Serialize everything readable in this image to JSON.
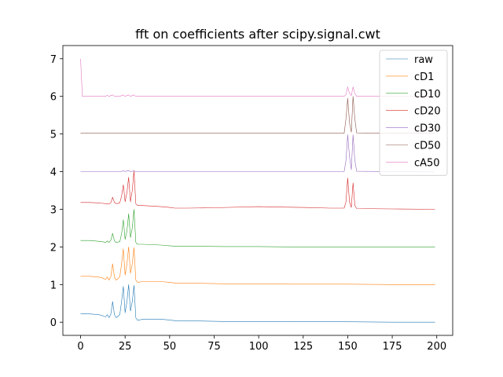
{
  "chart_data": {
    "type": "line",
    "title": "fft on coefficients after scipy.signal.cwt",
    "xlabel": "",
    "ylabel": "",
    "xlim": [
      -9.95,
      208.95
    ],
    "ylim": [
      -0.35,
      7.35
    ],
    "xticks": [
      0,
      25,
      50,
      75,
      100,
      125,
      150,
      175,
      200
    ],
    "yticks": [
      0,
      1,
      2,
      3,
      4,
      5,
      6,
      7
    ],
    "grid": false,
    "legend_position": "top-right",
    "series": [
      {
        "name": "raw",
        "color": "#1f77b4",
        "x": [
          0,
          5,
          10,
          12,
          14,
          15,
          16,
          17,
          18,
          19,
          20,
          22,
          23,
          24,
          25,
          26,
          27,
          28,
          29,
          30,
          31,
          32,
          35,
          45,
          50,
          53,
          60,
          80,
          100,
          120,
          150,
          175,
          199
        ],
        "y": [
          0.22,
          0.22,
          0.2,
          0.18,
          0.14,
          0.2,
          0.12,
          0.22,
          0.55,
          0.2,
          0.12,
          0.2,
          0.55,
          0.95,
          0.25,
          0.55,
          1.0,
          0.3,
          0.55,
          0.98,
          0.12,
          0.05,
          0.08,
          0.08,
          0.06,
          0.04,
          0.04,
          0.02,
          0.02,
          0.01,
          0.01,
          0.0,
          0.0
        ]
      },
      {
        "name": "cD1",
        "color": "#ff7f0e",
        "x": [
          0,
          5,
          10,
          12,
          14,
          15,
          16,
          17,
          18,
          19,
          20,
          22,
          23,
          24,
          25,
          26,
          27,
          28,
          29,
          30,
          31,
          32,
          35,
          45,
          50,
          53,
          60,
          80,
          100,
          120,
          150,
          175,
          199
        ],
        "y": [
          1.22,
          1.22,
          1.2,
          1.18,
          1.14,
          1.2,
          1.12,
          1.22,
          1.55,
          1.2,
          1.12,
          1.2,
          1.55,
          1.95,
          1.25,
          1.55,
          2.0,
          1.3,
          1.55,
          1.98,
          1.12,
          1.06,
          1.08,
          1.08,
          1.06,
          1.04,
          1.04,
          1.02,
          1.02,
          1.01,
          1.01,
          1.0,
          1.0
        ]
      },
      {
        "name": "cD10",
        "color": "#2ca02c",
        "x": [
          0,
          5,
          10,
          12,
          14,
          15,
          16,
          17,
          18,
          19,
          20,
          22,
          23,
          24,
          25,
          26,
          27,
          28,
          29,
          30,
          31,
          32,
          35,
          45,
          50,
          53,
          60,
          80,
          100,
          120,
          150,
          175,
          199
        ],
        "y": [
          2.17,
          2.17,
          2.15,
          2.14,
          2.12,
          2.16,
          2.12,
          2.18,
          2.36,
          2.16,
          2.12,
          2.14,
          2.35,
          2.72,
          2.2,
          2.42,
          2.88,
          2.25,
          2.5,
          3.0,
          2.12,
          2.07,
          2.07,
          2.05,
          2.03,
          2.02,
          2.02,
          2.01,
          2.01,
          2.0,
          2.0,
          2.0,
          2.0
        ]
      },
      {
        "name": "cD20",
        "color": "#d62728",
        "x": [
          0,
          5,
          10,
          14,
          16,
          17,
          18,
          19,
          20,
          22,
          23,
          24,
          25,
          26,
          27,
          28,
          29,
          30,
          31,
          32,
          35,
          45,
          50,
          53,
          60,
          75,
          100,
          110,
          125,
          140,
          148,
          149,
          150,
          151,
          152,
          153,
          154,
          155,
          175,
          199
        ],
        "y": [
          3.18,
          3.18,
          3.17,
          3.15,
          3.14,
          3.18,
          3.32,
          3.18,
          3.15,
          3.17,
          3.35,
          3.65,
          3.2,
          3.45,
          3.85,
          3.2,
          3.5,
          4.02,
          3.15,
          3.1,
          3.1,
          3.07,
          3.05,
          3.03,
          3.03,
          3.04,
          3.07,
          3.06,
          3.05,
          3.03,
          3.03,
          3.2,
          3.83,
          3.2,
          3.05,
          3.7,
          3.1,
          3.02,
          3.01,
          3.0
        ]
      },
      {
        "name": "cD30",
        "color": "#9467bd",
        "x": [
          0,
          20,
          23,
          24,
          25,
          26,
          27,
          28,
          29,
          30,
          31,
          32,
          50,
          100,
          148,
          149,
          150,
          151,
          152,
          153,
          154,
          155,
          175,
          199
        ],
        "y": [
          4.0,
          4.0,
          4.0,
          4.03,
          4.0,
          4.02,
          4.03,
          4.0,
          4.01,
          4.02,
          4.0,
          4.0,
          4.0,
          4.0,
          4.0,
          4.3,
          4.98,
          4.4,
          4.05,
          4.98,
          4.3,
          4.01,
          4.0,
          3.99
        ]
      },
      {
        "name": "cD50",
        "color": "#8c564b",
        "x": [
          0,
          50,
          100,
          148,
          149,
          150,
          151,
          152,
          153,
          154,
          155,
          175,
          199
        ],
        "y": [
          5.02,
          5.02,
          5.02,
          5.02,
          5.4,
          5.95,
          5.3,
          5.05,
          6.0,
          5.4,
          5.03,
          5.02,
          5.02
        ]
      },
      {
        "name": "cA50",
        "color": "#e377c2",
        "x": [
          0,
          1,
          5,
          10,
          14,
          15,
          16,
          17,
          18,
          19,
          22,
          23,
          24,
          25,
          26,
          27,
          28,
          29,
          30,
          31,
          35,
          50,
          100,
          148,
          149,
          150,
          151,
          152,
          153,
          154,
          155,
          175,
          199
        ],
        "y": [
          7.0,
          6.0,
          6.0,
          6.0,
          6.0,
          6.03,
          6.0,
          6.02,
          6.04,
          6.0,
          6.0,
          6.02,
          6.04,
          6.0,
          6.02,
          6.04,
          6.0,
          6.02,
          6.04,
          6.0,
          6.0,
          6.0,
          6.0,
          6.0,
          6.05,
          6.25,
          6.08,
          6.02,
          6.25,
          6.08,
          6.0,
          6.0,
          6.0
        ]
      }
    ]
  }
}
